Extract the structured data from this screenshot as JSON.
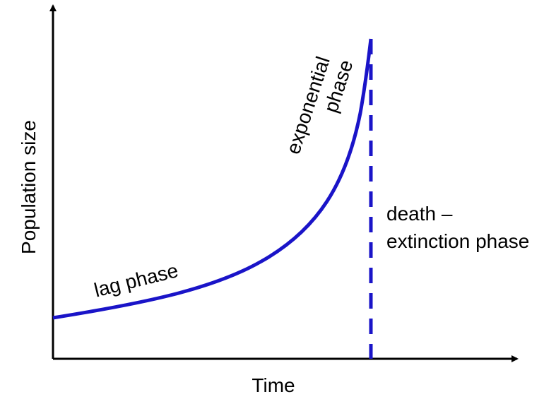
{
  "axes": {
    "x_label": "Time",
    "y_label": "Population size"
  },
  "phases": [
    {
      "lines": [
        "lag phase"
      ]
    },
    {
      "lines": [
        "exponential",
        "phase"
      ]
    },
    {
      "lines": [
        "death –",
        "extinction phase"
      ]
    }
  ]
}
